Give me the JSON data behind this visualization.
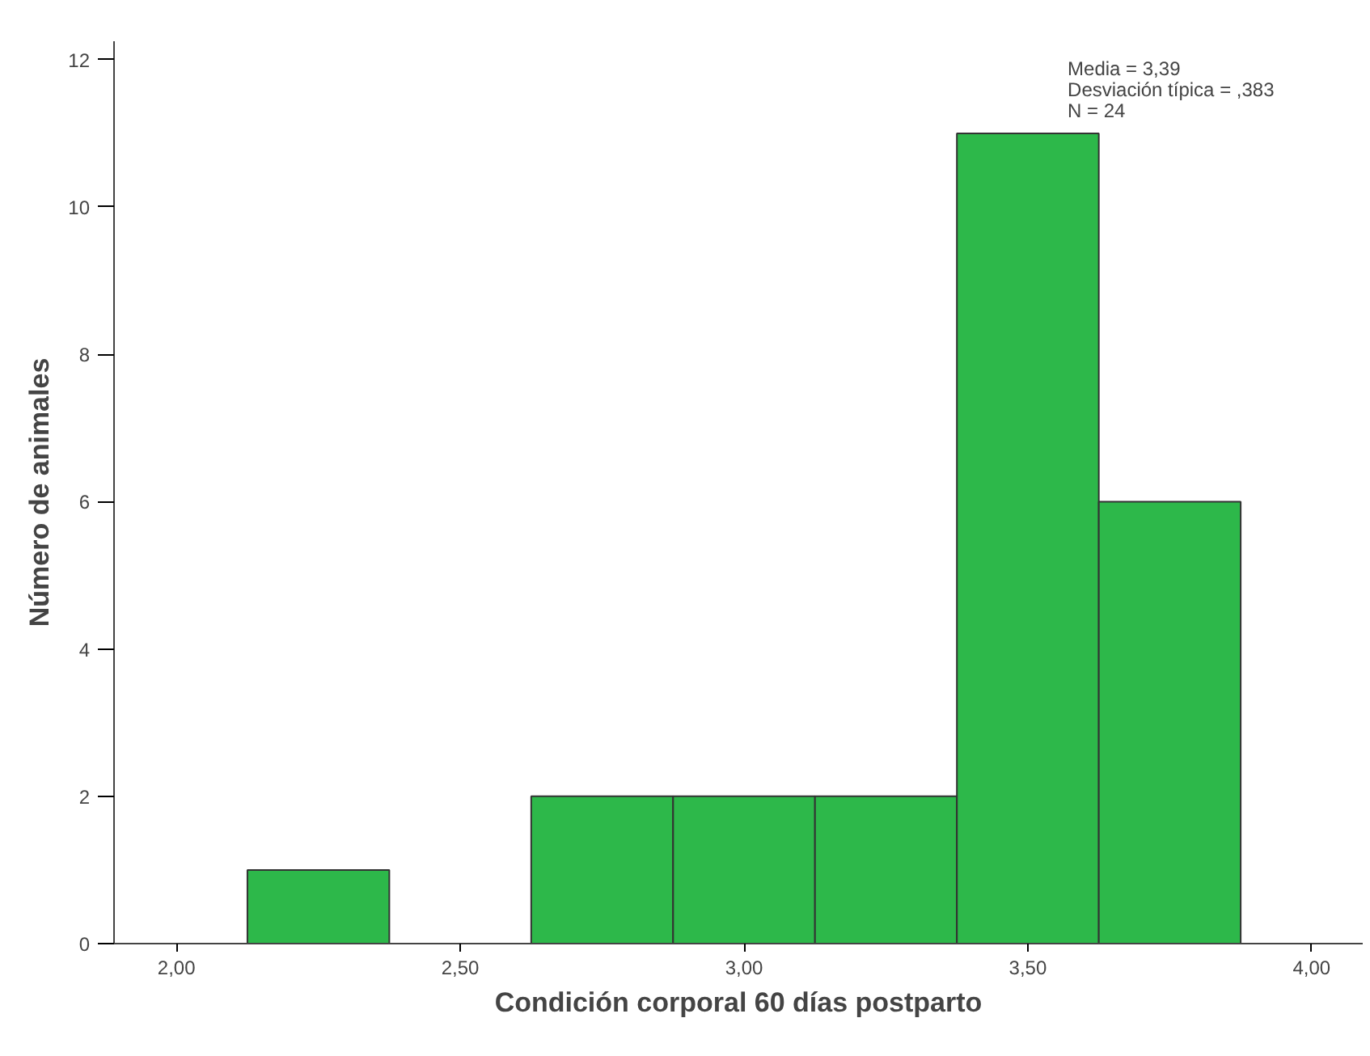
{
  "chart_data": {
    "type": "histogram",
    "xlabel": "Condición corporal 60 días postparto",
    "ylabel": "Número de animales",
    "bins": [
      2.125,
      2.375,
      2.625,
      2.875,
      3.125,
      3.375,
      3.625,
      3.875
    ],
    "values": [
      1,
      0,
      2,
      2,
      2,
      11,
      6
    ],
    "color": "#2db84a",
    "xlim": [
      1.89,
      4.09
    ],
    "ylim": [
      0,
      12.25
    ],
    "xticks": [
      {
        "value": 2,
        "label": "2,00"
      },
      {
        "value": 2.5,
        "label": "2,50"
      },
      {
        "value": 3,
        "label": "3,00"
      },
      {
        "value": 3.5,
        "label": "3,50"
      },
      {
        "value": 4,
        "label": "4,00"
      }
    ],
    "yticks": [
      0,
      2,
      4,
      6,
      8,
      10,
      12
    ],
    "grid": false,
    "annotations": [
      "Media = 3,39",
      "Desviación típica = ,383",
      "N = 24"
    ]
  }
}
